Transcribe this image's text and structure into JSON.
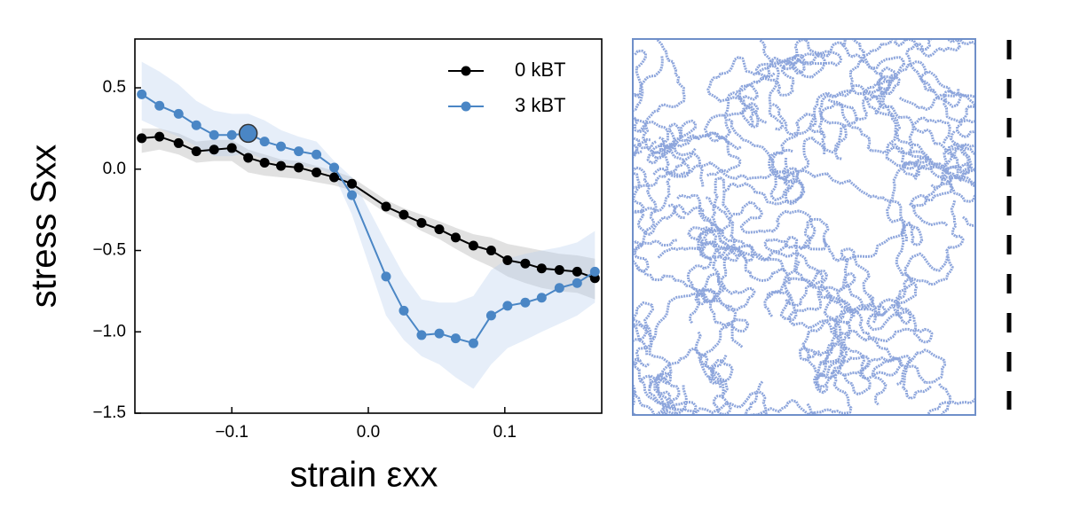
{
  "chart_data": {
    "type": "line",
    "xlabel": "strain εxx",
    "ylabel": "stress Sxx",
    "xlim": [
      -0.171,
      0.171
    ],
    "ylim": [
      -1.5,
      0.8
    ],
    "xticks": [
      {
        "value": -0.1,
        "label": "−0.1"
      },
      {
        "value": 0.0,
        "label": "0.0"
      },
      0.1
    ],
    "yticks": [
      {
        "value": -1.5,
        "label": "−1.5"
      },
      {
        "value": -1.0,
        "label": "−1.0"
      },
      {
        "value": -0.5,
        "label": "−0.5"
      },
      {
        "value": 0.0,
        "label": "0.0"
      },
      0.5
    ],
    "legend": "upper right",
    "x": [
      -0.166,
      -0.153,
      -0.139,
      -0.126,
      -0.113,
      -0.1,
      -0.088,
      -0.076,
      -0.064,
      -0.051,
      -0.038,
      -0.025,
      -0.012,
      0.013,
      0.026,
      0.039,
      0.052,
      0.064,
      0.077,
      0.09,
      0.102,
      0.115,
      0.127,
      0.14,
      0.153,
      0.166
    ],
    "series": [
      {
        "name": "0 kBT",
        "color": "#000000",
        "values": [
          0.19,
          0.2,
          0.16,
          0.11,
          0.12,
          0.13,
          0.07,
          0.04,
          0.02,
          0.01,
          -0.02,
          -0.05,
          -0.09,
          -0.23,
          -0.28,
          -0.33,
          -0.37,
          -0.42,
          -0.47,
          -0.5,
          -0.56,
          -0.58,
          -0.61,
          -0.62,
          -0.63,
          -0.67
        ],
        "upper": [
          0.25,
          0.25,
          0.22,
          0.17,
          0.18,
          0.18,
          0.12,
          0.09,
          0.06,
          0.05,
          0.02,
          -0.01,
          -0.05,
          -0.19,
          -0.24,
          -0.28,
          -0.32,
          -0.36,
          -0.4,
          -0.42,
          -0.46,
          -0.48,
          -0.5,
          -0.52,
          -0.53,
          -0.55
        ],
        "lower": [
          0.1,
          0.12,
          0.09,
          0.04,
          0.05,
          0.05,
          -0.02,
          -0.04,
          -0.05,
          -0.06,
          -0.08,
          -0.1,
          -0.13,
          -0.27,
          -0.32,
          -0.38,
          -0.43,
          -0.49,
          -0.55,
          -0.6,
          -0.66,
          -0.7,
          -0.73,
          -0.75,
          -0.76,
          -0.8
        ],
        "band_color": "#9a9a9a"
      },
      {
        "name": "3 kBT",
        "color": "#4a86c5",
        "values": [
          0.46,
          0.39,
          0.34,
          0.27,
          0.21,
          0.21,
          0.22,
          0.17,
          0.14,
          0.11,
          0.09,
          0.01,
          -0.16,
          -0.66,
          -0.87,
          -1.02,
          -1.01,
          -1.04,
          -1.07,
          -0.9,
          -0.84,
          -0.82,
          -0.79,
          -0.73,
          -0.7,
          -0.63
        ],
        "upper": [
          0.66,
          0.6,
          0.52,
          0.42,
          0.36,
          0.34,
          0.34,
          0.3,
          0.24,
          0.2,
          0.17,
          0.05,
          -0.05,
          -0.45,
          -0.65,
          -0.8,
          -0.82,
          -0.82,
          -0.78,
          -0.62,
          -0.55,
          -0.52,
          -0.5,
          -0.48,
          -0.45,
          -0.38
        ],
        "lower": [
          0.3,
          0.25,
          0.2,
          0.14,
          0.08,
          0.08,
          0.1,
          0.06,
          0.04,
          0.02,
          0.01,
          -0.04,
          -0.28,
          -0.9,
          -1.05,
          -1.15,
          -1.2,
          -1.28,
          -1.35,
          -1.2,
          -1.1,
          -1.05,
          -1.0,
          -0.95,
          -0.9,
          -0.82
        ],
        "band_color": "#b8cfee",
        "highlight_index": 6
      }
    ]
  }
}
